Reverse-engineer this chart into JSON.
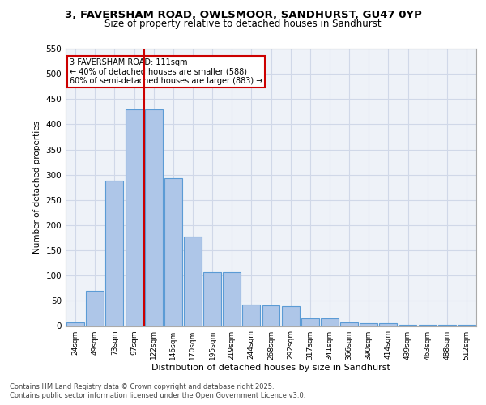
{
  "title_line1": "3, FAVERSHAM ROAD, OWLSMOOR, SANDHURST, GU47 0YP",
  "title_line2": "Size of property relative to detached houses in Sandhurst",
  "xlabel": "Distribution of detached houses by size in Sandhurst",
  "ylabel": "Number of detached properties",
  "categories": [
    "24sqm",
    "49sqm",
    "73sqm",
    "97sqm",
    "122sqm",
    "146sqm",
    "170sqm",
    "195sqm",
    "219sqm",
    "244sqm",
    "268sqm",
    "292sqm",
    "317sqm",
    "341sqm",
    "366sqm",
    "390sqm",
    "414sqm",
    "439sqm",
    "463sqm",
    "488sqm",
    "512sqm"
  ],
  "values": [
    8,
    70,
    288,
    430,
    430,
    293,
    178,
    106,
    106,
    43,
    41,
    40,
    16,
    16,
    8,
    5,
    5,
    3,
    3,
    2,
    3
  ],
  "bar_color": "#aec6e8",
  "bar_edge_color": "#5b9bd5",
  "annotation_text": "3 FAVERSHAM ROAD: 111sqm\n← 40% of detached houses are smaller (588)\n60% of semi-detached houses are larger (883) →",
  "annotation_box_color": "#ffffff",
  "annotation_box_edge": "#cc0000",
  "annotation_text_color": "#000000",
  "vline_color": "#cc0000",
  "grid_color": "#d0d8e8",
  "background_color": "#eef2f8",
  "ylim": [
    0,
    550
  ],
  "yticks": [
    0,
    50,
    100,
    150,
    200,
    250,
    300,
    350,
    400,
    450,
    500,
    550
  ],
  "footer_line1": "Contains HM Land Registry data © Crown copyright and database right 2025.",
  "footer_line2": "Contains public sector information licensed under the Open Government Licence v3.0."
}
